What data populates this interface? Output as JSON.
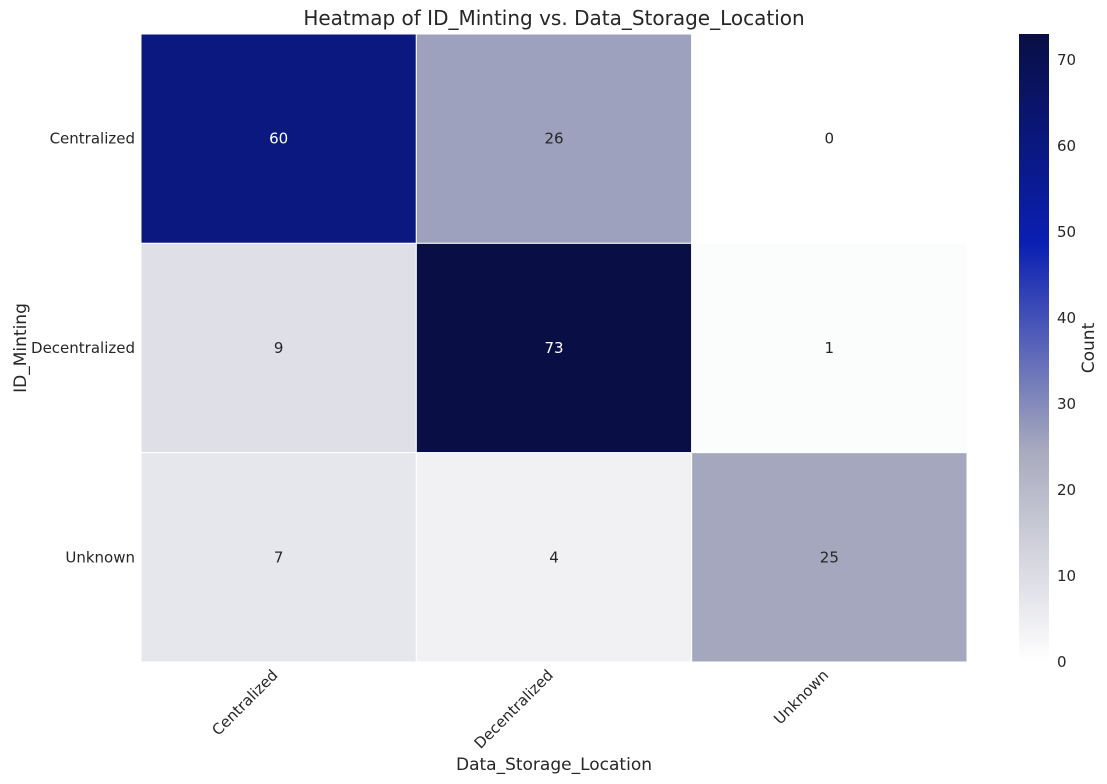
{
  "chart_data": {
    "type": "heatmap",
    "title": "Heatmap of ID_Minting vs. Data_Storage_Location",
    "xlabel": "Data_Storage_Location",
    "ylabel": "ID_Minting",
    "x_categories": [
      "Centralized",
      "Decentralized",
      "Unknown"
    ],
    "y_categories": [
      "Centralized",
      "Decentralized",
      "Unknown"
    ],
    "values": [
      [
        60,
        26,
        0
      ],
      [
        9,
        73,
        1
      ],
      [
        7,
        4,
        25
      ]
    ],
    "colorbar": {
      "label": "Count",
      "min": 0,
      "max": 73,
      "ticks": [
        0,
        10,
        20,
        30,
        40,
        50,
        60,
        70
      ],
      "colors": [
        "#ffffff",
        "#a9abbe",
        "#0a1fb3",
        "#090f44"
      ]
    },
    "grid": false,
    "annotations": true
  }
}
